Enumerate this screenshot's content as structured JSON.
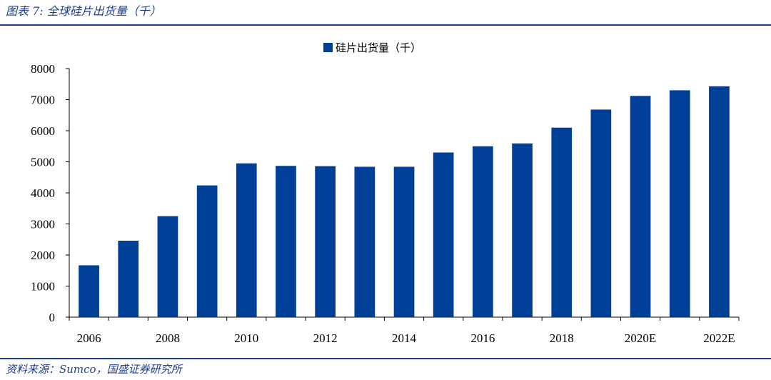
{
  "figure": {
    "caption": "图表 7:  全球硅片出货量（千）",
    "source": "资料来源：Sumco，国盛证券研究所"
  },
  "colors": {
    "bar": "#003f98",
    "rule": "#1f3e8c"
  },
  "chart_data": {
    "type": "bar",
    "title": "",
    "xlabel": "",
    "ylabel": "",
    "categories": [
      "2006",
      "2007",
      "2008",
      "2009",
      "2010",
      "2011",
      "2012",
      "2013",
      "2014",
      "2015",
      "2016",
      "2017",
      "2018",
      "2019",
      "2020E",
      "2021E",
      "2022E"
    ],
    "x_tick_labels": [
      "2006",
      "",
      "2008",
      "",
      "2010",
      "",
      "2012",
      "",
      "2014",
      "",
      "2016",
      "",
      "2018",
      "",
      "2020E",
      "",
      "2022E"
    ],
    "series": [
      {
        "name": "硅片出货量（千）",
        "values": [
          1670,
          2460,
          3250,
          4240,
          4950,
          4870,
          4860,
          4840,
          4840,
          5300,
          5500,
          5590,
          6100,
          6680,
          7120,
          7300,
          7430
        ]
      }
    ],
    "ylim": [
      0,
      8000
    ],
    "yticks": [
      0,
      1000,
      2000,
      3000,
      4000,
      5000,
      6000,
      7000,
      8000
    ],
    "grid": false,
    "legend": "top-center"
  }
}
